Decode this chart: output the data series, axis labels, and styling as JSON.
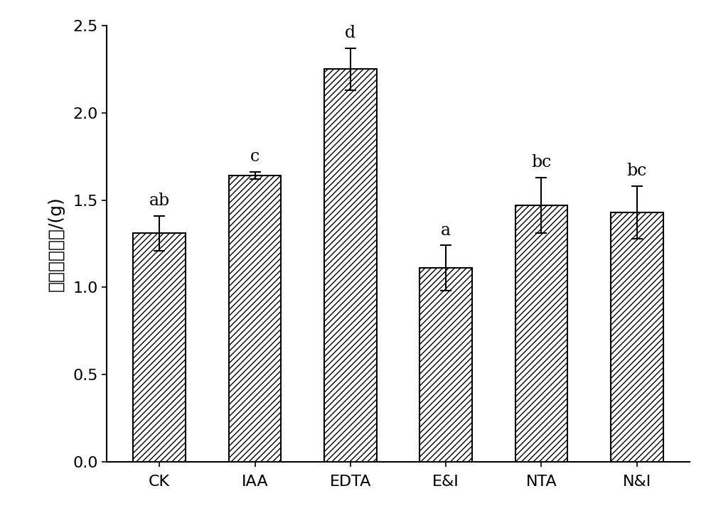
{
  "categories": [
    "CK",
    "IAA",
    "EDTA",
    "E&I",
    "NTA",
    "N&I"
  ],
  "values": [
    1.31,
    1.64,
    2.25,
    1.11,
    1.47,
    1.43
  ],
  "errors": [
    0.1,
    0.02,
    0.12,
    0.13,
    0.16,
    0.15
  ],
  "sig_labels": [
    "ab",
    "c",
    "d",
    "a",
    "bc",
    "bc"
  ],
  "ylabel": "李氏禾根干重/(g)",
  "ylim": [
    0,
    2.5
  ],
  "yticks": [
    0.0,
    0.5,
    1.0,
    1.5,
    2.0,
    2.5
  ],
  "bar_color": "#ffffff",
  "bar_edgecolor": "#000000",
  "hatch": "////",
  "bar_width": 0.55,
  "figsize": [
    10.0,
    7.22
  ],
  "dpi": 100,
  "sig_fontsize": 17,
  "tick_fontsize": 16,
  "ylabel_fontsize": 18,
  "background_color": "#ffffff",
  "hatch_linewidth": 1.0,
  "spine_linewidth": 1.5
}
